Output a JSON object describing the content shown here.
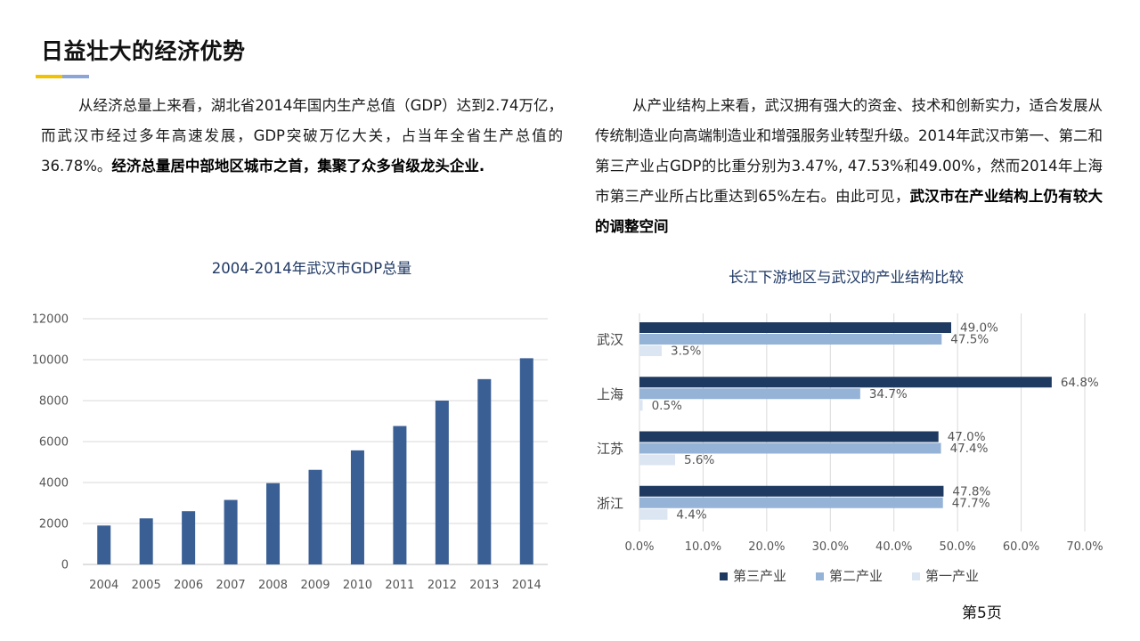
{
  "header": {
    "title": "日益壮大的经济优势",
    "accent_colors": [
      "#f2c200",
      "#8aa5d6"
    ]
  },
  "left_text": {
    "normal": "从经济总量上来看，湖北省2014年国内生产总值（GDP）达到2.74万亿，而武汉市经过多年高速发展，GDP突破万亿大关，占当年全省生产总值的36.78%。",
    "bold": "经济总量居中部地区城市之首，集聚了众多省级龙头企业."
  },
  "right_text": {
    "normal": "从产业结构上来看，武汉拥有强大的资金、技术和创新实力，适合发展从传统制造业向高端制造业和增强服务业转型升级。2014年武汉市第一、第二和第三产业占GDP的比重分别为3.47%, 47.53%和49.00%，然而2014年上海市第三产业所占比重达到65%左右。由此可见，",
    "bold": "武汉市在产业结构上仍有较大的调整空间"
  },
  "chart_data": [
    {
      "type": "bar",
      "title": "2004-2014年武汉市GDP总量",
      "categories": [
        "2004",
        "2005",
        "2006",
        "2007",
        "2008",
        "2009",
        "2010",
        "2011",
        "2012",
        "2013",
        "2014"
      ],
      "values": [
        1900,
        2250,
        2600,
        3150,
        3970,
        4620,
        5570,
        6760,
        8000,
        9050,
        10070
      ],
      "ylim": [
        0,
        12000
      ],
      "yticks": [
        0,
        2000,
        4000,
        6000,
        8000,
        10000,
        12000
      ],
      "xlabel": "",
      "ylabel": "",
      "grid": true,
      "color": "#3a5f95"
    },
    {
      "type": "bar",
      "orientation": "horizontal",
      "title": "长江下游地区与武汉的产业结构比较",
      "categories": [
        "武汉",
        "上海",
        "江苏",
        "浙江"
      ],
      "series": [
        {
          "name": "第三产业",
          "values": [
            49.0,
            64.8,
            47.0,
            47.8
          ],
          "labels": [
            "49.0%",
            "64.8%",
            "47.0%",
            "47.8%"
          ],
          "color": "#1f3a60"
        },
        {
          "name": "第二产业",
          "values": [
            47.5,
            34.7,
            47.4,
            47.7
          ],
          "labels": [
            "47.5%",
            "34.7%",
            "47.4%",
            "47.7%"
          ],
          "color": "#95b3d7"
        },
        {
          "name": "第一产业",
          "values": [
            3.5,
            0.5,
            5.6,
            4.4
          ],
          "labels": [
            "3.5%",
            "0.5%",
            "5.6%",
            "4.4%"
          ],
          "color": "#dce6f2"
        }
      ],
      "xlim": [
        0,
        70
      ],
      "xticks": [
        "0.0%",
        "10.0%",
        "20.0%",
        "30.0%",
        "40.0%",
        "50.0%",
        "60.0%",
        "70.0%"
      ],
      "grid": true,
      "legend": "bottom"
    }
  ],
  "footer": {
    "page": "第5页"
  }
}
